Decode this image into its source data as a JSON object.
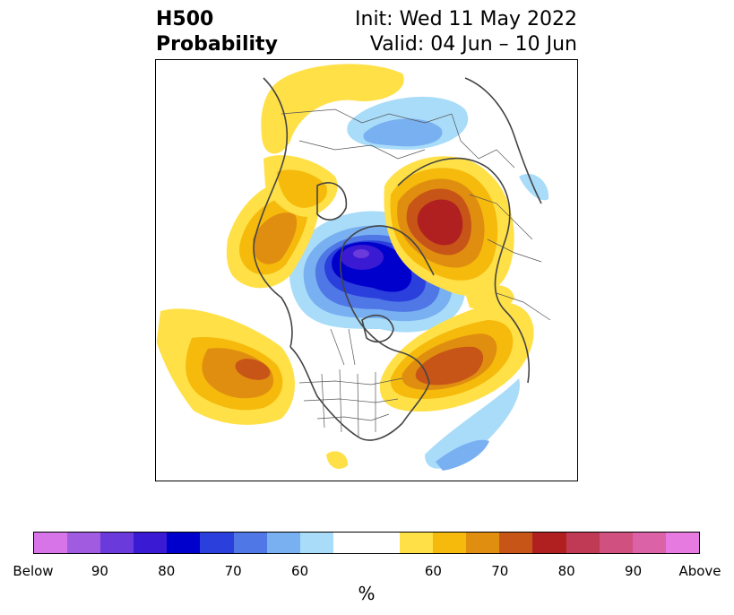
{
  "title": {
    "left_line1": "H500",
    "left_line2": "Probability",
    "right_line1": "Init: Wed 11 May 2022",
    "right_line2": "Valid: 04 Jun – 10 Jun"
  },
  "colorbar": {
    "unit": "%",
    "colors": [
      "#d774e8",
      "#a05be1",
      "#6b3adb",
      "#3b1ad4",
      "#0000cc",
      "#2a3fdc",
      "#4f78e6",
      "#78b0f2",
      "#a9dcf9",
      "#ffffff",
      "#ffffff",
      "#ffe046",
      "#f5ba0c",
      "#e08e10",
      "#c85518",
      "#b02020",
      "#c13a55",
      "#d05080",
      "#dc62a8",
      "#e67ae0"
    ],
    "tick_labels": [
      {
        "text": "Below",
        "index": 0
      },
      {
        "text": "90",
        "index": 2
      },
      {
        "text": "80",
        "index": 4
      },
      {
        "text": "70",
        "index": 6
      },
      {
        "text": "60",
        "index": 8
      },
      {
        "text": "60",
        "index": 12
      },
      {
        "text": "70",
        "index": 14
      },
      {
        "text": "80",
        "index": 16
      },
      {
        "text": "90",
        "index": 18
      },
      {
        "text": "Above",
        "index": 20
      }
    ]
  }
}
